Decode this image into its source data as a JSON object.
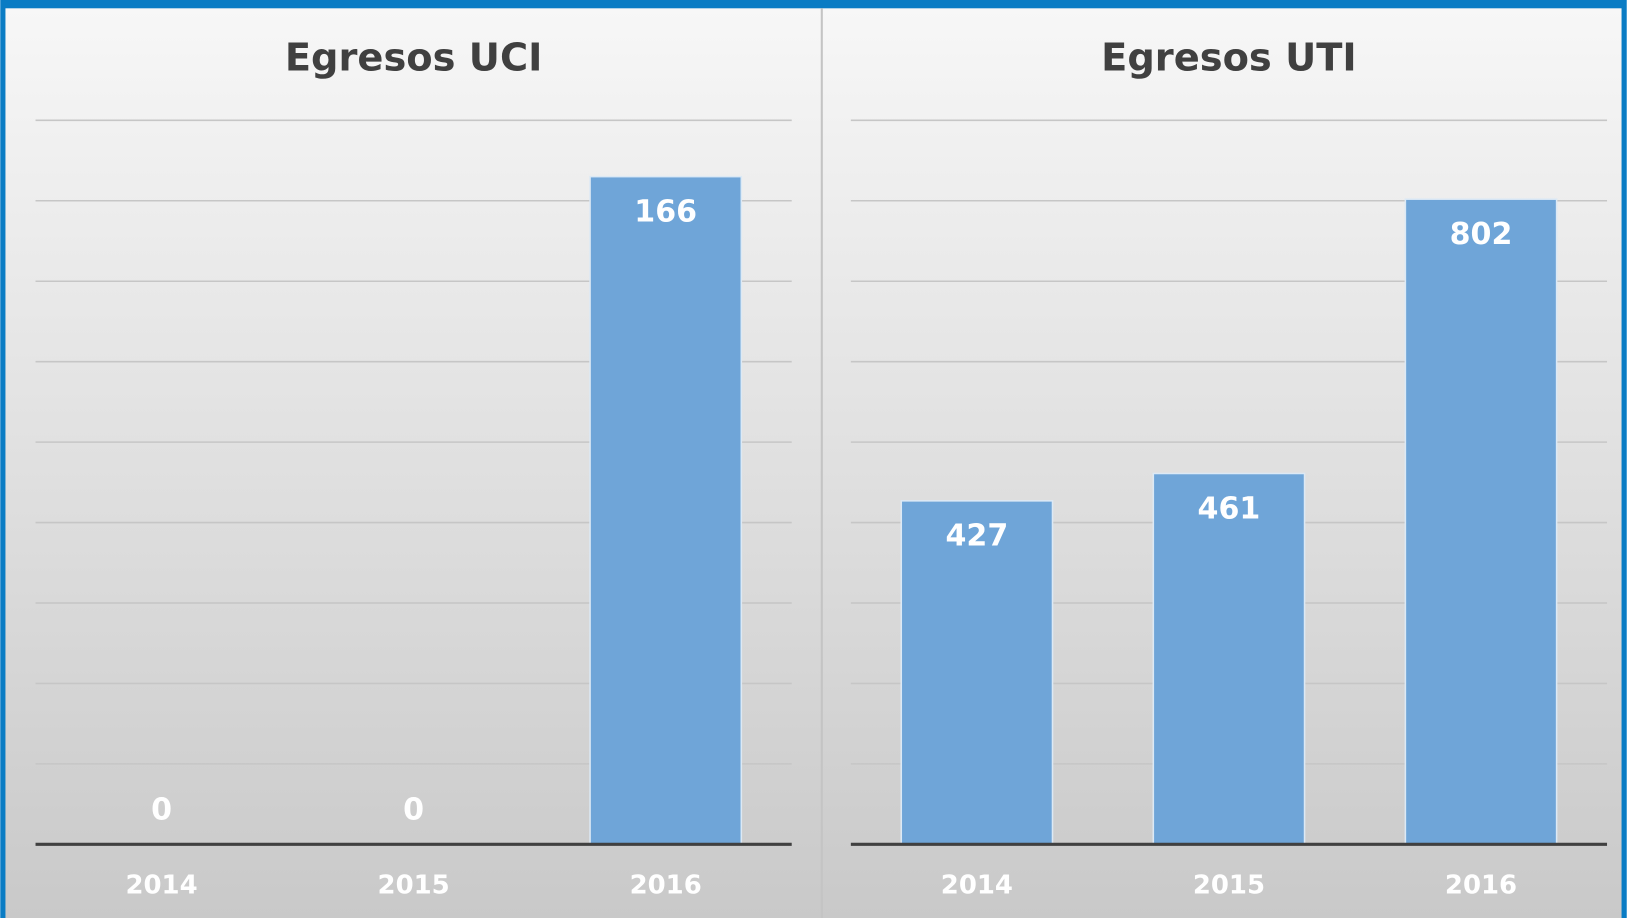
{
  "chart_data": [
    {
      "type": "bar",
      "title": "Egresos UCI",
      "categories": [
        "2014",
        "2015",
        "2016"
      ],
      "values": [
        0,
        0,
        166
      ],
      "color": "#6fa5d8",
      "ylim": [
        0,
        180
      ],
      "yticks": [
        0,
        20,
        40,
        60,
        80,
        100,
        120,
        140,
        160,
        180
      ],
      "grid": true
    },
    {
      "type": "bar",
      "title": "Egresos UTI",
      "categories": [
        "2014",
        "2015",
        "2016"
      ],
      "values": [
        427,
        461,
        802
      ],
      "color": "#6fa5d8",
      "ylim": [
        0,
        900
      ],
      "yticks": [
        0,
        100,
        200,
        300,
        400,
        500,
        600,
        700,
        800,
        900
      ],
      "grid": true
    }
  ]
}
